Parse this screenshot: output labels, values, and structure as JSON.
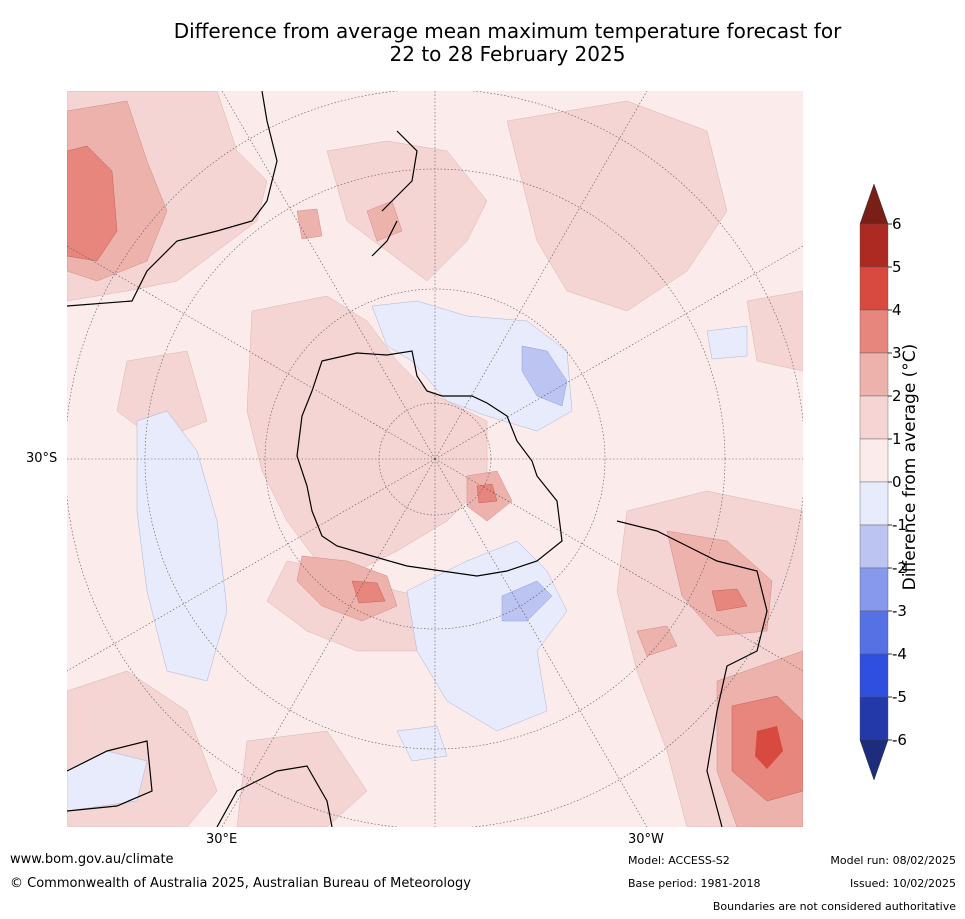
{
  "title": {
    "line1": "Difference from average mean maximum temperature forecast for",
    "line2": "22 to 28 February 2025"
  },
  "map": {
    "lat_label_left": "30°S",
    "lon_labels": {
      "east": "30°E",
      "west": "30°W"
    }
  },
  "colorbar": {
    "title": "Difference from average (°C)",
    "ticks": [
      "-6",
      "-5",
      "-4",
      "-3",
      "-2",
      "-1",
      "0",
      "1",
      "2",
      "3",
      "4",
      "5",
      "6"
    ],
    "colors": {
      "lt_-6": "#1e2c7e",
      "-6_-5": "#2338a9",
      "-5_-4": "#2f4fe0",
      "-4_-3": "#5571e3",
      "-3_-2": "#8799ec",
      "-2_-1": "#bcc5f2",
      "-1_0": "#e8ebfb",
      "0_1": "#fbeceb",
      "1_2": "#f4d5d3",
      "2_3": "#eeb2ad",
      "3_4": "#e6867d",
      "4_5": "#d84a3f",
      "5_6": "#ad2a22",
      "gt_6": "#7a1e18"
    }
  },
  "footer": {
    "url": "www.bom.gov.au/climate",
    "copyright": "© Commonwealth of Australia 2025, Australian Bureau of Meteorology",
    "model": "Model: ACCESS-S2",
    "base_period": "Base period: 1981-2018",
    "model_run": "Model run: 08/02/2025",
    "issued": "Issued: 10/02/2025",
    "disclaimer": "Boundaries are not considered authoritative"
  }
}
